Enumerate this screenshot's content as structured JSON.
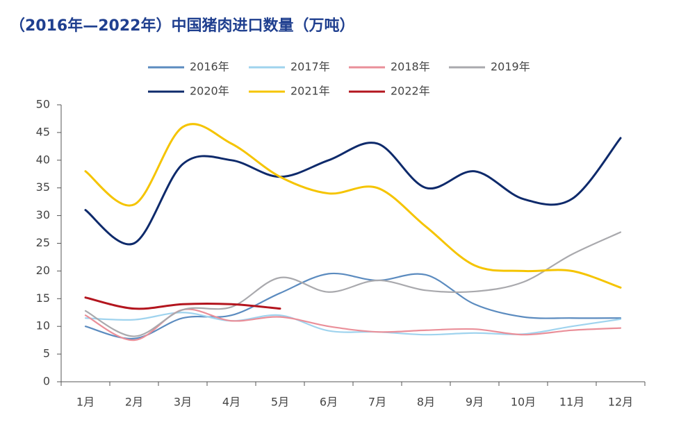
{
  "chart_data": {
    "type": "line",
    "title": "（2016年—2022年）中国猪肉进口数量（万吨）",
    "categories": [
      "1月",
      "2月",
      "3月",
      "4月",
      "5月",
      "6月",
      "7月",
      "8月",
      "9月",
      "10月",
      "11月",
      "12月"
    ],
    "series": [
      {
        "name": "2016年",
        "color": "#5b8bbf",
        "values": [
          10,
          7.8,
          11.5,
          12,
          16,
          19.5,
          18.3,
          19.3,
          14,
          11.7,
          11.5,
          11.5
        ]
      },
      {
        "name": "2017年",
        "color": "#9fd3ee",
        "values": [
          11.5,
          11.2,
          12.5,
          11,
          12,
          9.2,
          9,
          8.5,
          8.8,
          8.6,
          10,
          11.3
        ]
      },
      {
        "name": "2018年",
        "color": "#ea8f99",
        "values": [
          12,
          7.5,
          13,
          11,
          11.7,
          10,
          9,
          9.3,
          9.5,
          8.5,
          9.3,
          9.7
        ]
      },
      {
        "name": "2019年",
        "color": "#a9a9ad",
        "values": [
          12.8,
          8.2,
          13,
          13.5,
          18.8,
          16.2,
          18.3,
          16.5,
          16.3,
          18,
          23,
          27
        ]
      },
      {
        "name": "2020年",
        "color": "#0e2a6b",
        "values": [
          31,
          25,
          39.3,
          40,
          37,
          40,
          43,
          35,
          38,
          33,
          33,
          44
        ]
      },
      {
        "name": "2021年",
        "color": "#f5c400",
        "values": [
          38,
          32,
          46,
          43,
          37,
          34,
          35,
          28,
          21,
          20,
          20,
          17
        ]
      },
      {
        "name": "2022年",
        "color": "#b3151e",
        "values": [
          15.2,
          13.2,
          14,
          14,
          13.2,
          null,
          null,
          null,
          null,
          null,
          null,
          null
        ]
      }
    ],
    "ylim": [
      0,
      50
    ],
    "yticks": [
      0,
      5,
      10,
      15,
      20,
      25,
      30,
      35,
      40,
      45,
      50
    ],
    "grid": false,
    "legend": "top"
  }
}
